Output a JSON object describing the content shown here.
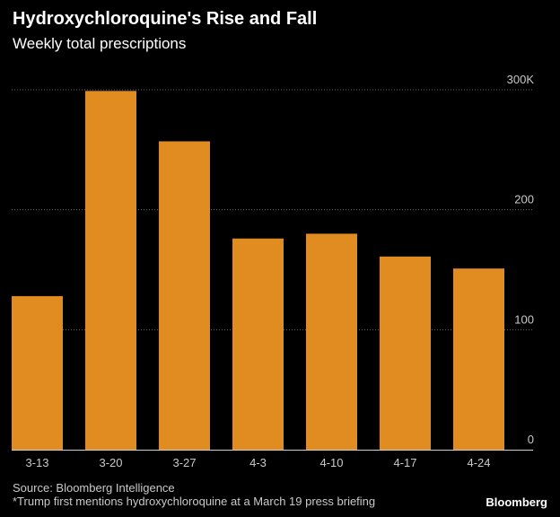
{
  "header": {
    "title": "Hydroxychloroquine's Rise and Fall",
    "subtitle": "Weekly total prescriptions"
  },
  "footer": {
    "source": "Source: Bloomberg Intelligence",
    "note": "*Trump first mentions hydroxychloroquine at a March 19 press briefing",
    "brand": "Bloomberg"
  },
  "colors": {
    "bar": "#e08c20",
    "background": "#000000",
    "grid": "#6b6b6b"
  },
  "chart_data": {
    "type": "bar",
    "title": "Hydroxychloroquine's Rise and Fall",
    "subtitle": "Weekly total prescriptions",
    "categories": [
      "3-13",
      "3-20",
      "3-27",
      "4-3",
      "4-10",
      "4-17",
      "4-24"
    ],
    "values": [
      128,
      299,
      257,
      176,
      180,
      161,
      151
    ],
    "units": "thousands of prescriptions",
    "ylim": [
      0,
      300
    ],
    "yticks": [
      0,
      100,
      200,
      300
    ],
    "ytick_labels": [
      "0",
      "100",
      "200",
      "300K"
    ],
    "y_axis_side": "right",
    "grid": "horizontal dotted",
    "legend": "none"
  }
}
